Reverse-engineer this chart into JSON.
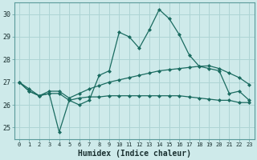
{
  "xlabel": "Humidex (Indice chaleur)",
  "ylabel": "",
  "background_color": "#ceeaea",
  "grid_color": "#aed4d4",
  "line_color": "#1a6b60",
  "xlim": [
    -0.5,
    23.5
  ],
  "ylim": [
    24.5,
    30.5
  ],
  "yticks": [
    25,
    26,
    27,
    28,
    29,
    30
  ],
  "xticks": [
    0,
    1,
    2,
    3,
    4,
    5,
    6,
    7,
    8,
    9,
    10,
    11,
    12,
    13,
    14,
    15,
    16,
    17,
    18,
    19,
    20,
    21,
    22,
    23
  ],
  "x": [
    0,
    1,
    2,
    3,
    4,
    5,
    6,
    7,
    8,
    9,
    10,
    11,
    12,
    13,
    14,
    15,
    16,
    17,
    18,
    19,
    20,
    21,
    22,
    23
  ],
  "line1": [
    27.0,
    26.6,
    26.4,
    26.5,
    24.8,
    26.2,
    26.0,
    26.2,
    27.3,
    27.5,
    29.2,
    29.0,
    28.5,
    29.3,
    30.2,
    29.8,
    29.1,
    28.2,
    27.7,
    27.6,
    27.5,
    26.5,
    26.6,
    26.2
  ],
  "line2": [
    27.0,
    26.7,
    26.4,
    26.6,
    26.6,
    26.3,
    26.5,
    26.7,
    26.85,
    27.0,
    27.1,
    27.2,
    27.3,
    27.4,
    27.5,
    27.55,
    27.6,
    27.65,
    27.7,
    27.72,
    27.6,
    27.4,
    27.2,
    26.9
  ],
  "line3": [
    27.0,
    26.6,
    26.4,
    26.5,
    26.5,
    26.2,
    26.3,
    26.35,
    26.35,
    26.4,
    26.4,
    26.4,
    26.4,
    26.4,
    26.4,
    26.4,
    26.4,
    26.35,
    26.3,
    26.25,
    26.2,
    26.2,
    26.1,
    26.1
  ]
}
